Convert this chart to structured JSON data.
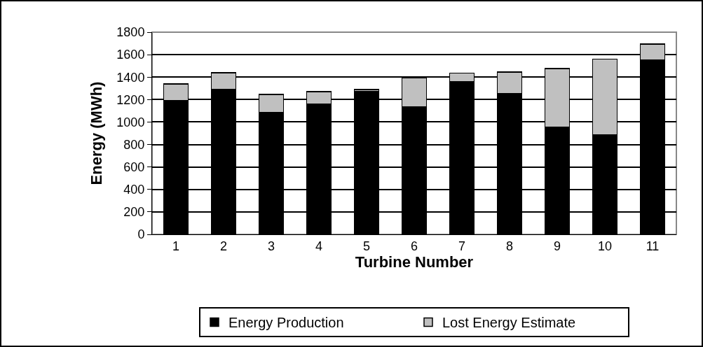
{
  "chart_data": {
    "type": "bar",
    "stacked": true,
    "xlabel": "Turbine Number",
    "ylabel": "Energy (MWh)",
    "categories": [
      "1",
      "2",
      "3",
      "4",
      "5",
      "6",
      "7",
      "8",
      "9",
      "10",
      "11"
    ],
    "series": [
      {
        "name": "Energy Production",
        "color": "#000000",
        "values": [
          1190,
          1290,
          1085,
          1160,
          1270,
          1135,
          1360,
          1255,
          955,
          885,
          1550
        ]
      },
      {
        "name": "Lost Energy Estimate",
        "color": "#c0c0c0",
        "values": [
          150,
          150,
          160,
          110,
          20,
          260,
          75,
          190,
          520,
          675,
          145
        ]
      }
    ],
    "ylim": [
      0,
      1800
    ],
    "yticks": [
      0,
      200,
      400,
      600,
      800,
      1000,
      1200,
      1400,
      1600,
      1800
    ],
    "grid": "y",
    "legend": "bottom"
  }
}
